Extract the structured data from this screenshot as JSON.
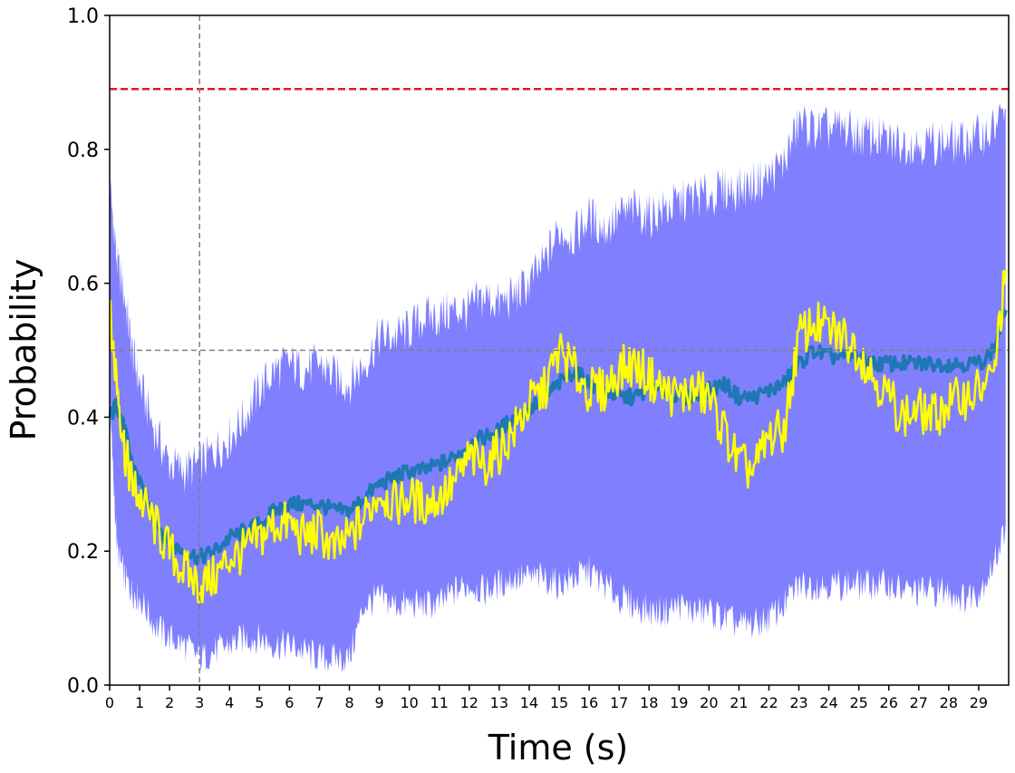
{
  "chart_data": {
    "type": "line",
    "title": "",
    "xlabel": "Time (s)",
    "ylabel": "Probability",
    "xlim": [
      0,
      30
    ],
    "ylim": [
      0,
      1
    ],
    "x_ticks": [
      "0",
      "1",
      "2",
      "3",
      "4",
      "5",
      "6",
      "7",
      "8",
      "9",
      "10",
      "11",
      "12",
      "13",
      "14",
      "15",
      "16",
      "17",
      "18",
      "19",
      "20",
      "21",
      "22",
      "23",
      "24",
      "25",
      "26",
      "27",
      "28",
      "29"
    ],
    "y_ticks": [
      "0.0",
      "0.2",
      "0.4",
      "0.6",
      "0.8",
      "1.0"
    ],
    "grid": false,
    "legend": "none",
    "reference_lines": [
      {
        "orientation": "horizontal",
        "value": 0.89,
        "color": "#e31a1c",
        "style": "dashed"
      },
      {
        "orientation": "horizontal",
        "value": 0.5,
        "color": "#808080",
        "style": "dashed"
      },
      {
        "orientation": "vertical",
        "value": 3,
        "color": "#808080",
        "style": "dashed"
      }
    ],
    "x": [
      0,
      0.25,
      0.5,
      0.75,
      1,
      1.5,
      2,
      2.5,
      3,
      3.5,
      4,
      4.5,
      5,
      5.5,
      6,
      6.5,
      7,
      7.5,
      8,
      8.5,
      9,
      9.5,
      10,
      10.5,
      11,
      11.5,
      12,
      12.5,
      13,
      13.5,
      14,
      14.5,
      15,
      15.5,
      16,
      16.5,
      17,
      17.5,
      18,
      18.5,
      19,
      19.5,
      20,
      20.5,
      21,
      21.5,
      22,
      22.5,
      23,
      23.5,
      24,
      24.5,
      25,
      25.5,
      26,
      26.5,
      27,
      27.5,
      28,
      28.5,
      29,
      29.5,
      29.9
    ],
    "series": [
      {
        "color": "#1f77b4",
        "role": "mean",
        "values": [
          0.4,
          0.42,
          0.38,
          0.33,
          0.3,
          0.25,
          0.21,
          0.2,
          0.19,
          0.2,
          0.22,
          0.23,
          0.24,
          0.26,
          0.27,
          0.27,
          0.27,
          0.26,
          0.26,
          0.28,
          0.3,
          0.31,
          0.32,
          0.32,
          0.33,
          0.34,
          0.36,
          0.37,
          0.38,
          0.4,
          0.41,
          0.43,
          0.45,
          0.47,
          0.45,
          0.44,
          0.43,
          0.43,
          0.44,
          0.44,
          0.43,
          0.43,
          0.44,
          0.45,
          0.43,
          0.43,
          0.44,
          0.45,
          0.48,
          0.5,
          0.49,
          0.49,
          0.49,
          0.48,
          0.48,
          0.48,
          0.48,
          0.48,
          0.48,
          0.48,
          0.48,
          0.5,
          0.56
        ]
      },
      {
        "color": "#ffff00",
        "role": "sample",
        "values": [
          0.55,
          0.45,
          0.35,
          0.3,
          0.28,
          0.24,
          0.2,
          0.17,
          0.15,
          0.16,
          0.19,
          0.2,
          0.22,
          0.24,
          0.24,
          0.22,
          0.23,
          0.2,
          0.22,
          0.25,
          0.29,
          0.27,
          0.28,
          0.27,
          0.28,
          0.3,
          0.34,
          0.33,
          0.35,
          0.38,
          0.42,
          0.44,
          0.5,
          0.47,
          0.44,
          0.44,
          0.47,
          0.48,
          0.46,
          0.44,
          0.43,
          0.44,
          0.43,
          0.38,
          0.33,
          0.32,
          0.37,
          0.38,
          0.52,
          0.54,
          0.53,
          0.52,
          0.5,
          0.46,
          0.43,
          0.4,
          0.41,
          0.4,
          0.42,
          0.43,
          0.44,
          0.46,
          0.62
        ]
      }
    ],
    "band": {
      "color": "#8080ff",
      "lower": [
        0.42,
        0.2,
        0.16,
        0.14,
        0.13,
        0.09,
        0.07,
        0.06,
        0.04,
        0.05,
        0.06,
        0.07,
        0.07,
        0.06,
        0.06,
        0.05,
        0.04,
        0.04,
        0.04,
        0.12,
        0.13,
        0.12,
        0.12,
        0.12,
        0.12,
        0.14,
        0.15,
        0.14,
        0.15,
        0.16,
        0.16,
        0.16,
        0.15,
        0.16,
        0.17,
        0.15,
        0.13,
        0.12,
        0.11,
        0.11,
        0.12,
        0.11,
        0.11,
        0.1,
        0.09,
        0.09,
        0.1,
        0.12,
        0.15,
        0.15,
        0.15,
        0.15,
        0.15,
        0.15,
        0.15,
        0.14,
        0.14,
        0.14,
        0.14,
        0.13,
        0.14,
        0.18,
        0.24
      ],
      "upper": [
        0.75,
        0.63,
        0.58,
        0.5,
        0.45,
        0.38,
        0.33,
        0.32,
        0.33,
        0.35,
        0.37,
        0.4,
        0.44,
        0.47,
        0.48,
        0.47,
        0.48,
        0.46,
        0.45,
        0.48,
        0.52,
        0.52,
        0.53,
        0.55,
        0.55,
        0.56,
        0.56,
        0.58,
        0.57,
        0.58,
        0.6,
        0.63,
        0.68,
        0.67,
        0.7,
        0.68,
        0.7,
        0.71,
        0.7,
        0.71,
        0.72,
        0.73,
        0.73,
        0.74,
        0.74,
        0.75,
        0.76,
        0.78,
        0.84,
        0.83,
        0.83,
        0.83,
        0.82,
        0.82,
        0.81,
        0.81,
        0.81,
        0.81,
        0.81,
        0.81,
        0.82,
        0.83,
        0.86
      ]
    }
  }
}
